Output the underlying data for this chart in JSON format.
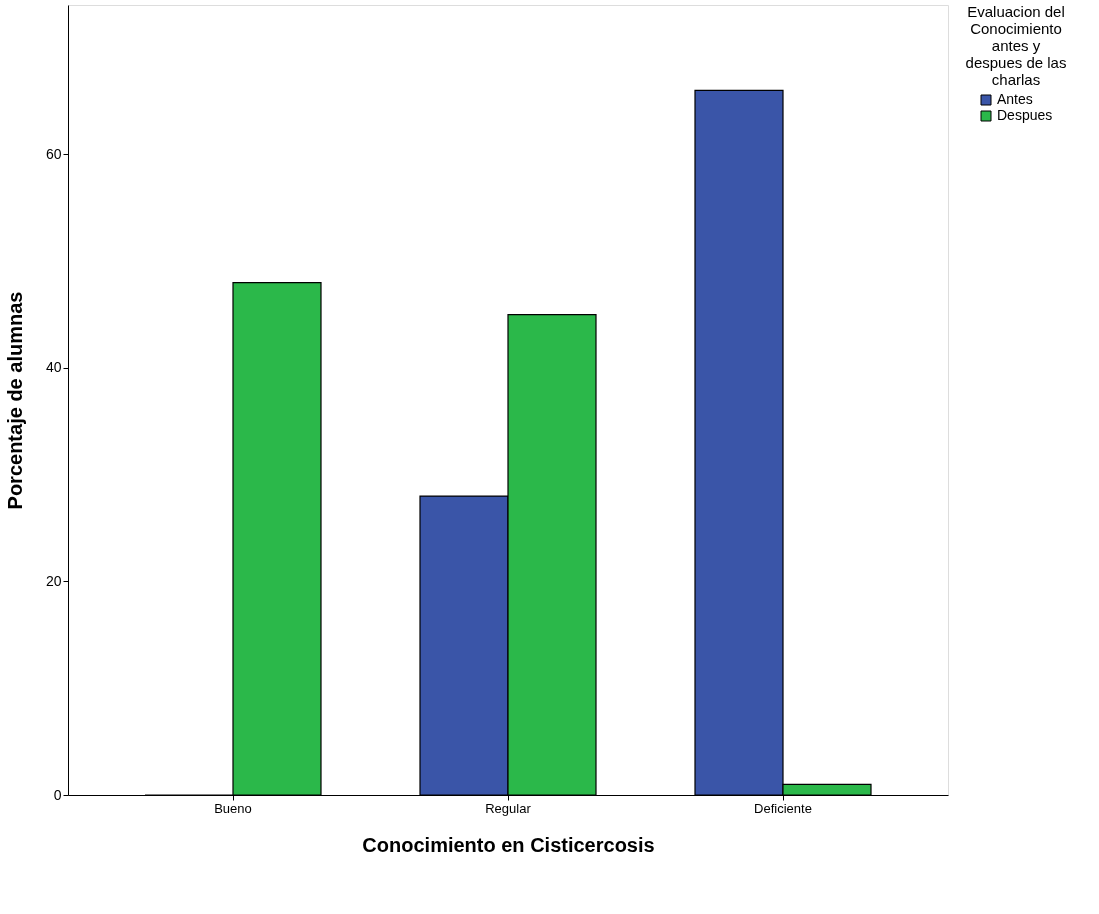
{
  "chart_data": {
    "type": "bar",
    "xlabel": "Conocimiento en Cisticercosis",
    "ylabel": "Porcentaje de alumnas",
    "legend_title": "Evaluacion del Conocimiento antes y despues de las charlas",
    "categories": [
      "Bueno",
      "Regular",
      "Deficiente"
    ],
    "series": [
      {
        "name": "Antes",
        "color": "#3a55a8",
        "values": [
          0,
          28,
          66
        ]
      },
      {
        "name": "Despues",
        "color": "#2bb84a",
        "values": [
          48,
          45,
          1
        ]
      }
    ],
    "ylim": [
      0,
      74
    ],
    "yticks": [
      0,
      20,
      40,
      60
    ],
    "grid": false,
    "legend": "top right"
  }
}
